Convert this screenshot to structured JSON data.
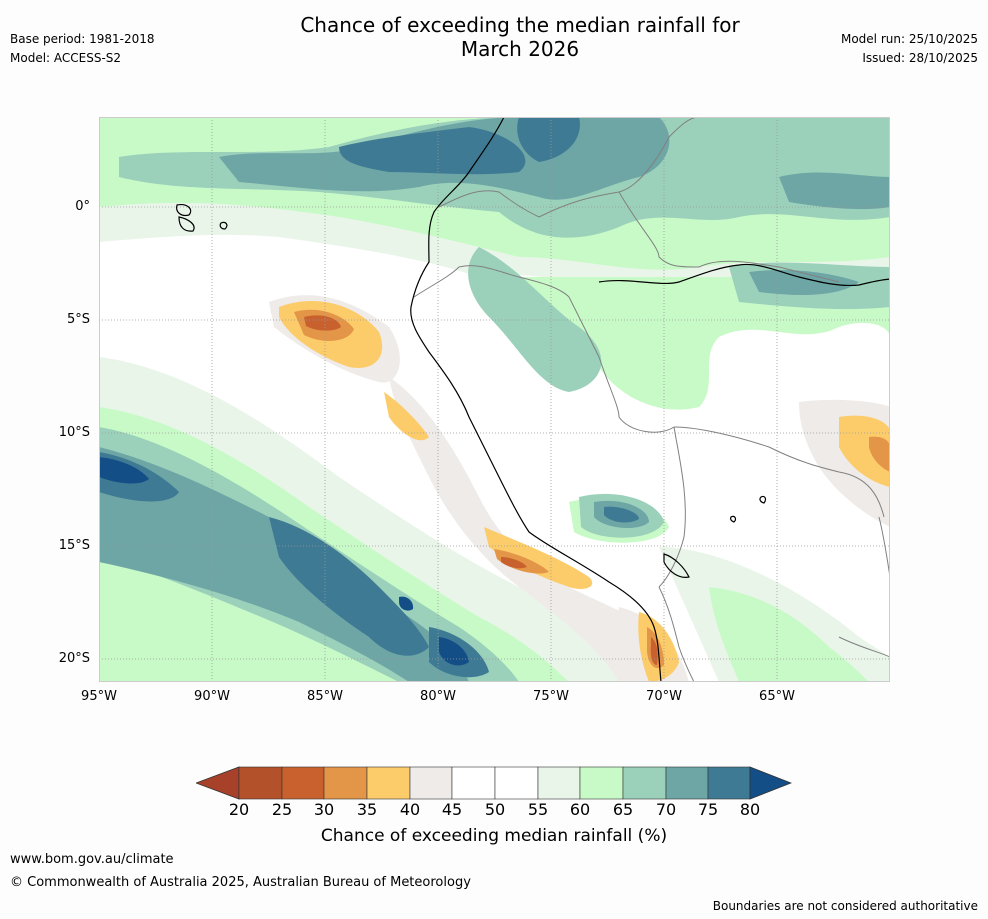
{
  "header": {
    "title_line1": "Chance of exceeding the median rainfall for",
    "title_line2": "March 2026",
    "base_period": "Base period: 1981-2018",
    "model": "Model: ACCESS-S2",
    "model_run": "Model run: 25/10/2025",
    "issued": "Issued: 28/10/2025"
  },
  "map": {
    "lat_labels": [
      "0°",
      "5°S",
      "10°S",
      "15°S",
      "20°S"
    ],
    "lon_labels": [
      "95°W",
      "90°W",
      "85°W",
      "80°W",
      "75°W",
      "70°W",
      "65°W"
    ],
    "colors": {
      "c20": "#a8412a",
      "c25": "#c9612e",
      "c30": "#e39548",
      "c35": "#fccc6b",
      "c40": "#efebe8",
      "c45": "#ffffff",
      "c50": "#ffffff",
      "c55": "#eaf5ea",
      "c60": "#c8fac8",
      "c65": "#9bd1ba",
      "c70": "#6ea6a6",
      "c75": "#3f7a94",
      "c80": "#134e87",
      "coast": "#000000",
      "border": "#808080",
      "grid": "#999999"
    }
  },
  "legend": {
    "title": "Chance of exceeding median rainfall (%)",
    "ticks": [
      "20",
      "25",
      "30",
      "35",
      "40",
      "45",
      "50",
      "55",
      "60",
      "65",
      "70",
      "75",
      "80"
    ],
    "colors": [
      "#a8412a",
      "#b3512a",
      "#c9612e",
      "#e39548",
      "#fccc6b",
      "#efebe8",
      "#ffffff",
      "#ffffff",
      "#eaf5ea",
      "#c8fac8",
      "#9bd1ba",
      "#6ea6a6",
      "#3f7a94",
      "#134e87"
    ]
  },
  "footer": {
    "website": "www.bom.gov.au/climate",
    "copyright": "© Commonwealth of Australia 2025, Australian Bureau of Meteorology",
    "disclaimer": "Boundaries are not considered authoritative"
  }
}
